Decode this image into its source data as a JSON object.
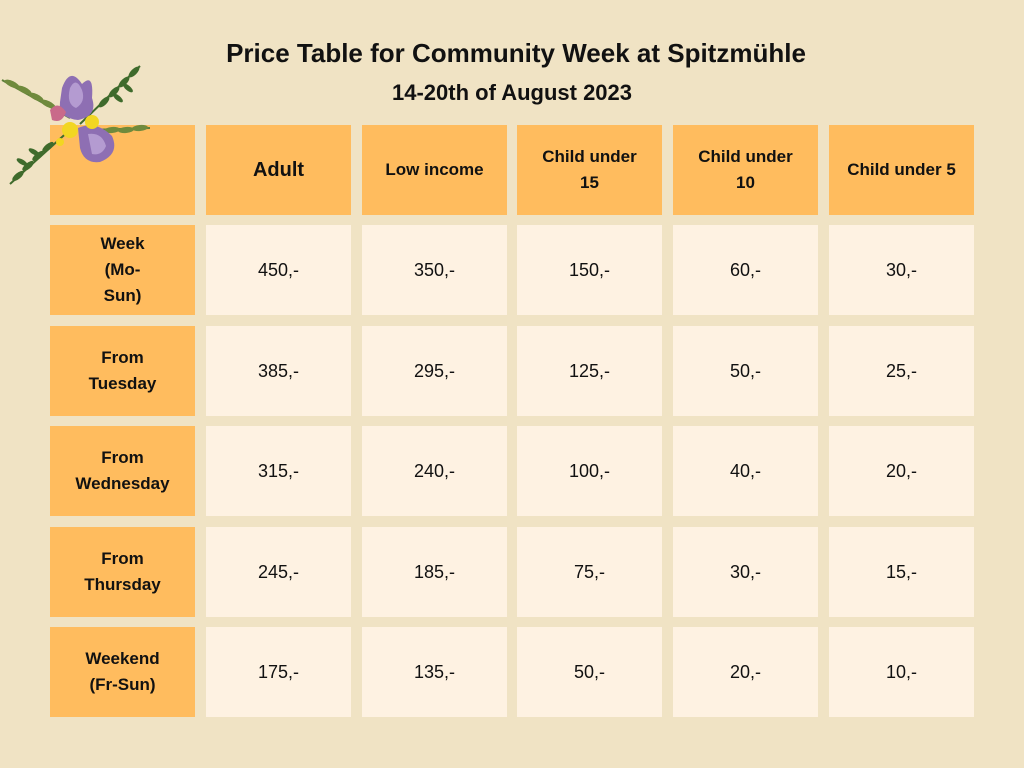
{
  "header": {
    "title": "Price Table for Community Week at Spitzmühle",
    "subtitle": "14-20th of August 2023"
  },
  "table": {
    "columns": [
      "Adult",
      "Low income",
      "Child under 15",
      "Child under 10",
      "Child under 5"
    ],
    "rows": [
      {
        "label": "Week (Mo-Sun)",
        "values": [
          "450,-",
          "350,-",
          "150,-",
          "60,-",
          "30,-"
        ]
      },
      {
        "label": "From Tuesday",
        "values": [
          "385,-",
          "295,-",
          "125,-",
          "50,-",
          "25,-"
        ]
      },
      {
        "label": "From Wednesday",
        "values": [
          "315,-",
          "240,-",
          "100,-",
          "40,-",
          "20,-"
        ]
      },
      {
        "label": "From Thursday",
        "values": [
          "245,-",
          "185,-",
          "75,-",
          "30,-",
          "15,-"
        ]
      },
      {
        "label": "Weekend (Fr-Sun)",
        "values": [
          "175,-",
          "135,-",
          "50,-",
          "20,-",
          "10,-"
        ]
      }
    ]
  },
  "decoration": {
    "icon": "floral-bouquet-icon",
    "colors": {
      "leaf": "#3f6b2c",
      "petal": "#8e6fb3",
      "bloom": "#f2d622"
    }
  }
}
